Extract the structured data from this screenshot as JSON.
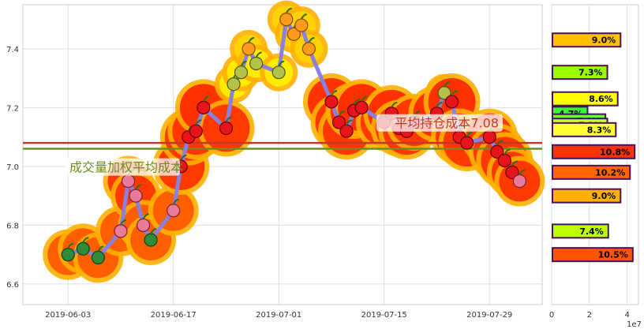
{
  "chart_data": [
    {
      "type": "line",
      "x_axis_type": "date",
      "grid": true,
      "legend": "none",
      "xticks": [
        "2019-06-03",
        "2019-06-17",
        "2019-07-01",
        "2019-07-15",
        "2019-07-29"
      ],
      "xlim": [
        "2019-05-28",
        "2019-08-05"
      ],
      "ylim": [
        6.53,
        7.55
      ],
      "yticks": [
        6.6,
        6.8,
        7.0,
        7.2,
        7.4
      ],
      "series": [
        {
          "x": [
            "2019-06-03",
            "2019-06-05",
            "2019-06-07",
            "2019-06-10",
            "2019-06-11",
            "2019-06-12",
            "2019-06-13",
            "2019-06-14",
            "2019-06-17",
            "2019-06-18",
            "2019-06-19",
            "2019-06-20",
            "2019-06-21",
            "2019-06-24",
            "2019-06-25",
            "2019-06-26",
            "2019-06-27",
            "2019-06-28",
            "2019-07-01",
            "2019-07-02",
            "2019-07-03",
            "2019-07-04",
            "2019-07-05",
            "2019-07-08",
            "2019-07-09",
            "2019-07-10",
            "2019-07-11",
            "2019-07-12",
            "2019-07-15",
            "2019-07-16",
            "2019-07-17",
            "2019-07-18",
            "2019-07-19",
            "2019-07-22",
            "2019-07-23",
            "2019-07-24",
            "2019-07-25",
            "2019-07-26",
            "2019-07-29",
            "2019-07-30",
            "2019-07-31",
            "2019-08-01",
            "2019-08-02"
          ],
          "values": [
            6.7,
            6.72,
            6.69,
            6.78,
            6.95,
            6.9,
            6.8,
            6.75,
            6.85,
            7.0,
            7.1,
            7.12,
            7.2,
            7.13,
            7.28,
            7.32,
            7.4,
            7.35,
            7.32,
            7.5,
            7.45,
            7.48,
            7.4,
            7.22,
            7.15,
            7.12,
            7.19,
            7.2,
            7.15,
            7.18,
            7.13,
            7.12,
            7.15,
            7.18,
            7.25,
            7.22,
            7.1,
            7.08,
            7.1,
            7.05,
            7.02,
            6.98,
            6.95
          ]
        }
      ],
      "cost_lines": [
        {
          "label": "成交量加权平均成本",
          "value": 7.06,
          "color": "#6b8e23"
        },
        {
          "label": "平均持仓成本7.08",
          "value": 7.08,
          "color": "#c0392b"
        }
      ]
    },
    {
      "type": "bar",
      "orientation": "horizontal",
      "xlim": [
        0,
        4.6
      ],
      "xticks": [
        0,
        2,
        4
      ],
      "x_scale_label": "1e7",
      "ylim": [
        6.53,
        7.55
      ],
      "bars": [
        {
          "price": 7.43,
          "value": 3.65,
          "label": "9.0%",
          "color": "#ffc000"
        },
        {
          "price": 7.32,
          "value": 2.95,
          "label": "7.3%",
          "color": "#99ff00"
        },
        {
          "price": 7.23,
          "value": 3.5,
          "label": "8.6%",
          "color": "#ffff00"
        },
        {
          "price": 7.18,
          "value": 1.9,
          "label": "4.7%",
          "color": "#33ff33"
        },
        {
          "price": 7.155,
          "value": 2.85,
          "label": "7.0%",
          "color": "#66ff33"
        },
        {
          "price": 7.14,
          "value": 2.95,
          "label": "7.3%",
          "color": "#ccff33"
        },
        {
          "price": 7.125,
          "value": 3.4,
          "label": "8.3%",
          "color": "#ffff33"
        },
        {
          "price": 7.05,
          "value": 4.4,
          "label": "10.8%",
          "color": "#ff3300"
        },
        {
          "price": 6.98,
          "value": 4.15,
          "label": "10.2%",
          "color": "#ff6600"
        },
        {
          "price": 6.9,
          "value": 3.65,
          "label": "9.0%",
          "color": "#ffb000"
        },
        {
          "price": 6.78,
          "value": 3.0,
          "label": "7.4%",
          "color": "#bbff00"
        },
        {
          "price": 6.7,
          "value": 4.3,
          "label": "10.5%",
          "color": "#ff5500"
        }
      ]
    }
  ]
}
